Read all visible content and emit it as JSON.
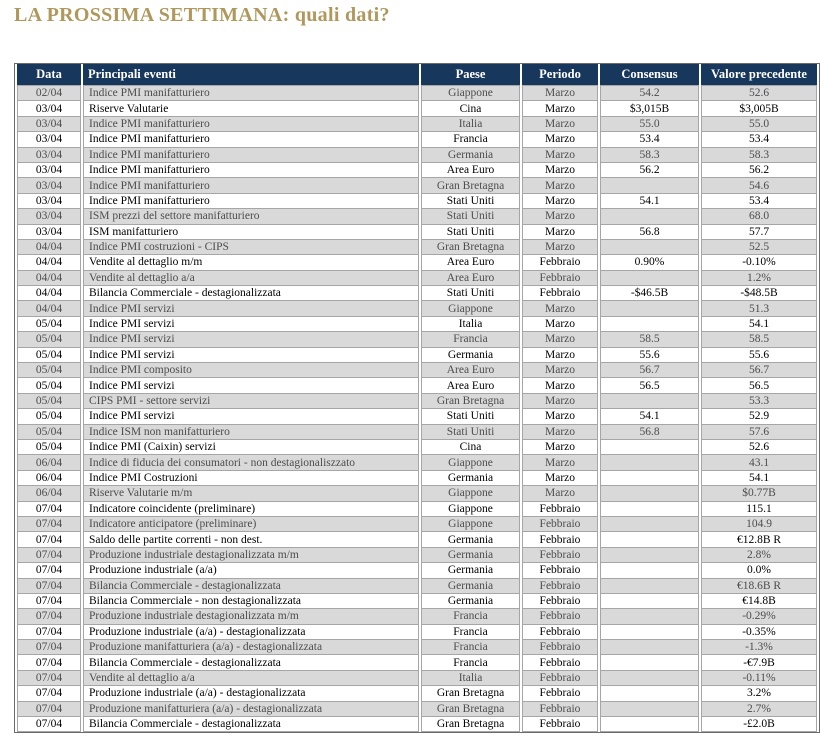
{
  "title": "LA PROSSIMA SETTIMANA: quali dati?",
  "colors": {
    "title_color": "#b0985c",
    "header_bg": "#17375d",
    "header_text": "#ffffff",
    "row_alt_bg": "#d9d9d9",
    "row_alt_text": "#4d4d4d"
  },
  "table": {
    "headers": [
      "Data",
      "Principali eventi",
      "Paese",
      "Periodo",
      "Consensus",
      "Valore precedente"
    ],
    "column_slugs": [
      "data",
      "principali-eventi",
      "paese",
      "periodo",
      "consensus",
      "valore-precedente"
    ],
    "cell_names": [
      "date-cell",
      "event-cell",
      "country-cell",
      "period-cell",
      "consensus-cell",
      "previous-value-cell"
    ],
    "rows": [
      [
        "02/04",
        "Indice PMI manifatturiero",
        "Giappone",
        "Marzo",
        "54.2",
        "52.6"
      ],
      [
        "03/04",
        "Riserve Valutarie",
        "Cina",
        "Marzo",
        "$3,015B",
        "$3,005B"
      ],
      [
        "03/04",
        "Indice PMI manifatturiero",
        "Italia",
        "Marzo",
        "55.0",
        "55.0"
      ],
      [
        "03/04",
        "Indice PMI manifatturiero",
        "Francia",
        "Marzo",
        "53.4",
        "53.4"
      ],
      [
        "03/04",
        "Indice PMI manifatturiero",
        "Germania",
        "Marzo",
        "58.3",
        "58.3"
      ],
      [
        "03/04",
        "Indice PMI manifatturiero",
        "Area Euro",
        "Marzo",
        "56.2",
        "56.2"
      ],
      [
        "03/04",
        "Indice PMI manifatturiero",
        "Gran Bretagna",
        "Marzo",
        "",
        "54.6"
      ],
      [
        "03/04",
        "Indice PMI manifatturiero",
        "Stati Uniti",
        "Marzo",
        "54.1",
        "53.4"
      ],
      [
        "03/04",
        "ISM  prezzi del settore manifatturiero",
        "Stati Uniti",
        "Marzo",
        "",
        "68.0"
      ],
      [
        "03/04",
        "ISM manifatturiero",
        "Stati Uniti",
        "Marzo",
        "56.8",
        "57.7"
      ],
      [
        "04/04",
        "Indice PMI costruzioni - CIPS",
        "Gran Bretagna",
        "Marzo",
        "",
        "52.5"
      ],
      [
        "04/04",
        "Vendite al dettaglio m/m",
        "Area Euro",
        "Febbraio",
        "0.90%",
        "-0.10%"
      ],
      [
        "04/04",
        "Vendite al dettaglio a/a",
        "Area Euro",
        "Febbraio",
        "",
        "1.2%"
      ],
      [
        "04/04",
        "Bilancia Commerciale - destagionalizzata",
        "Stati Uniti",
        "Febbraio",
        "-$46.5B",
        "-$48.5B"
      ],
      [
        "04/04",
        "Indice PMI servizi",
        "Giappone",
        "Marzo",
        "",
        "51.3"
      ],
      [
        "05/04",
        "Indice PMI servizi",
        "Italia",
        "Marzo",
        "",
        "54.1"
      ],
      [
        "05/04",
        "Indice PMI servizi",
        "Francia",
        "Marzo",
        "58.5",
        "58.5"
      ],
      [
        "05/04",
        "Indice PMI servizi",
        "Germania",
        "Marzo",
        "55.6",
        "55.6"
      ],
      [
        "05/04",
        "Indice PMI composito",
        "Area Euro",
        "Marzo",
        "56.7",
        "56.7"
      ],
      [
        "05/04",
        "Indice PMI servizi",
        "Area Euro",
        "Marzo",
        "56.5",
        "56.5"
      ],
      [
        "05/04",
        "CIPS PMI - settore servizi",
        "Gran Bretagna",
        "Marzo",
        "",
        "53.3"
      ],
      [
        "05/04",
        "Indice PMI servizi",
        "Stati Uniti",
        "Marzo",
        "54.1",
        "52.9"
      ],
      [
        "05/04",
        "Indice ISM non manifatturiero",
        "Stati Uniti",
        "Marzo",
        "56.8",
        "57.6"
      ],
      [
        "05/04",
        "Indice PMI (Caixin) servizi",
        "Cina",
        "Marzo",
        "",
        "52.6"
      ],
      [
        "06/04",
        "Indice di fiducia dei consumatori - non destagionaliszzato",
        "Giappone",
        "Marzo",
        "",
        "43.1"
      ],
      [
        "06/04",
        "Indice PMI  Costruzioni",
        "Germania",
        "Marzo",
        "",
        "54.1"
      ],
      [
        "06/04",
        "Riserve Valutarie m/m",
        "Giappone",
        "Marzo",
        "",
        "$0.77B"
      ],
      [
        "07/04",
        "Indicatore coincidente (preliminare)",
        "Giappone",
        "Febbraio",
        "",
        "115.1"
      ],
      [
        "07/04",
        "Indicatore anticipatore (preliminare)",
        "Giappone",
        "Febbraio",
        "",
        "104.9"
      ],
      [
        "07/04",
        "Saldo delle partite correnti -  non dest.",
        "Germania",
        "Febbraio",
        "",
        "€12.8B R"
      ],
      [
        "07/04",
        "Produzione industriale destagionalizzata m/m",
        "Germania",
        "Febbraio",
        "",
        "2.8%"
      ],
      [
        "07/04",
        "Produzione industriale (a/a)",
        "Germania",
        "Febbraio",
        "",
        "0.0%"
      ],
      [
        "07/04",
        "Bilancia Commerciale - destagionalizzata",
        "Germania",
        "Febbraio",
        "",
        "€18.6B R"
      ],
      [
        "07/04",
        "Bilancia Commerciale - non destagionalizzata",
        "Germania",
        "Febbraio",
        "",
        "€14.8B"
      ],
      [
        "07/04",
        "Produzione industriale destagionalizzata m/m",
        "Francia",
        "Febbraio",
        "",
        "-0.29%"
      ],
      [
        "07/04",
        "Produzione industriale (a/a) - destagionalizzata",
        "Francia",
        "Febbraio",
        "",
        "-0.35%"
      ],
      [
        "07/04",
        "Produzione manifatturiera (a/a) -  destagionalizzata",
        "Francia",
        "Febbraio",
        "",
        "-1.3%"
      ],
      [
        "07/04",
        "Bilancia Commerciale - destagionalizzata",
        "Francia",
        "Febbraio",
        "",
        "-€7.9B"
      ],
      [
        "07/04",
        "Vendite al dettaglio a/a",
        "Italia",
        "Febbraio",
        "",
        "-0.11%"
      ],
      [
        "07/04",
        "Produzione industriale (a/a) - destagionalizzata",
        "Gran Bretagna",
        "Febbraio",
        "",
        "3.2%"
      ],
      [
        "07/04",
        "Produzione manifatturiera (a/a) -  destagionalizzata",
        "Gran Bretagna",
        "Febbraio",
        "",
        "2.7%"
      ],
      [
        "07/04",
        "Bilancia Commerciale - destagionalizzata",
        "Gran Bretagna",
        "Febbraio",
        "",
        "-£2.0B"
      ]
    ]
  }
}
